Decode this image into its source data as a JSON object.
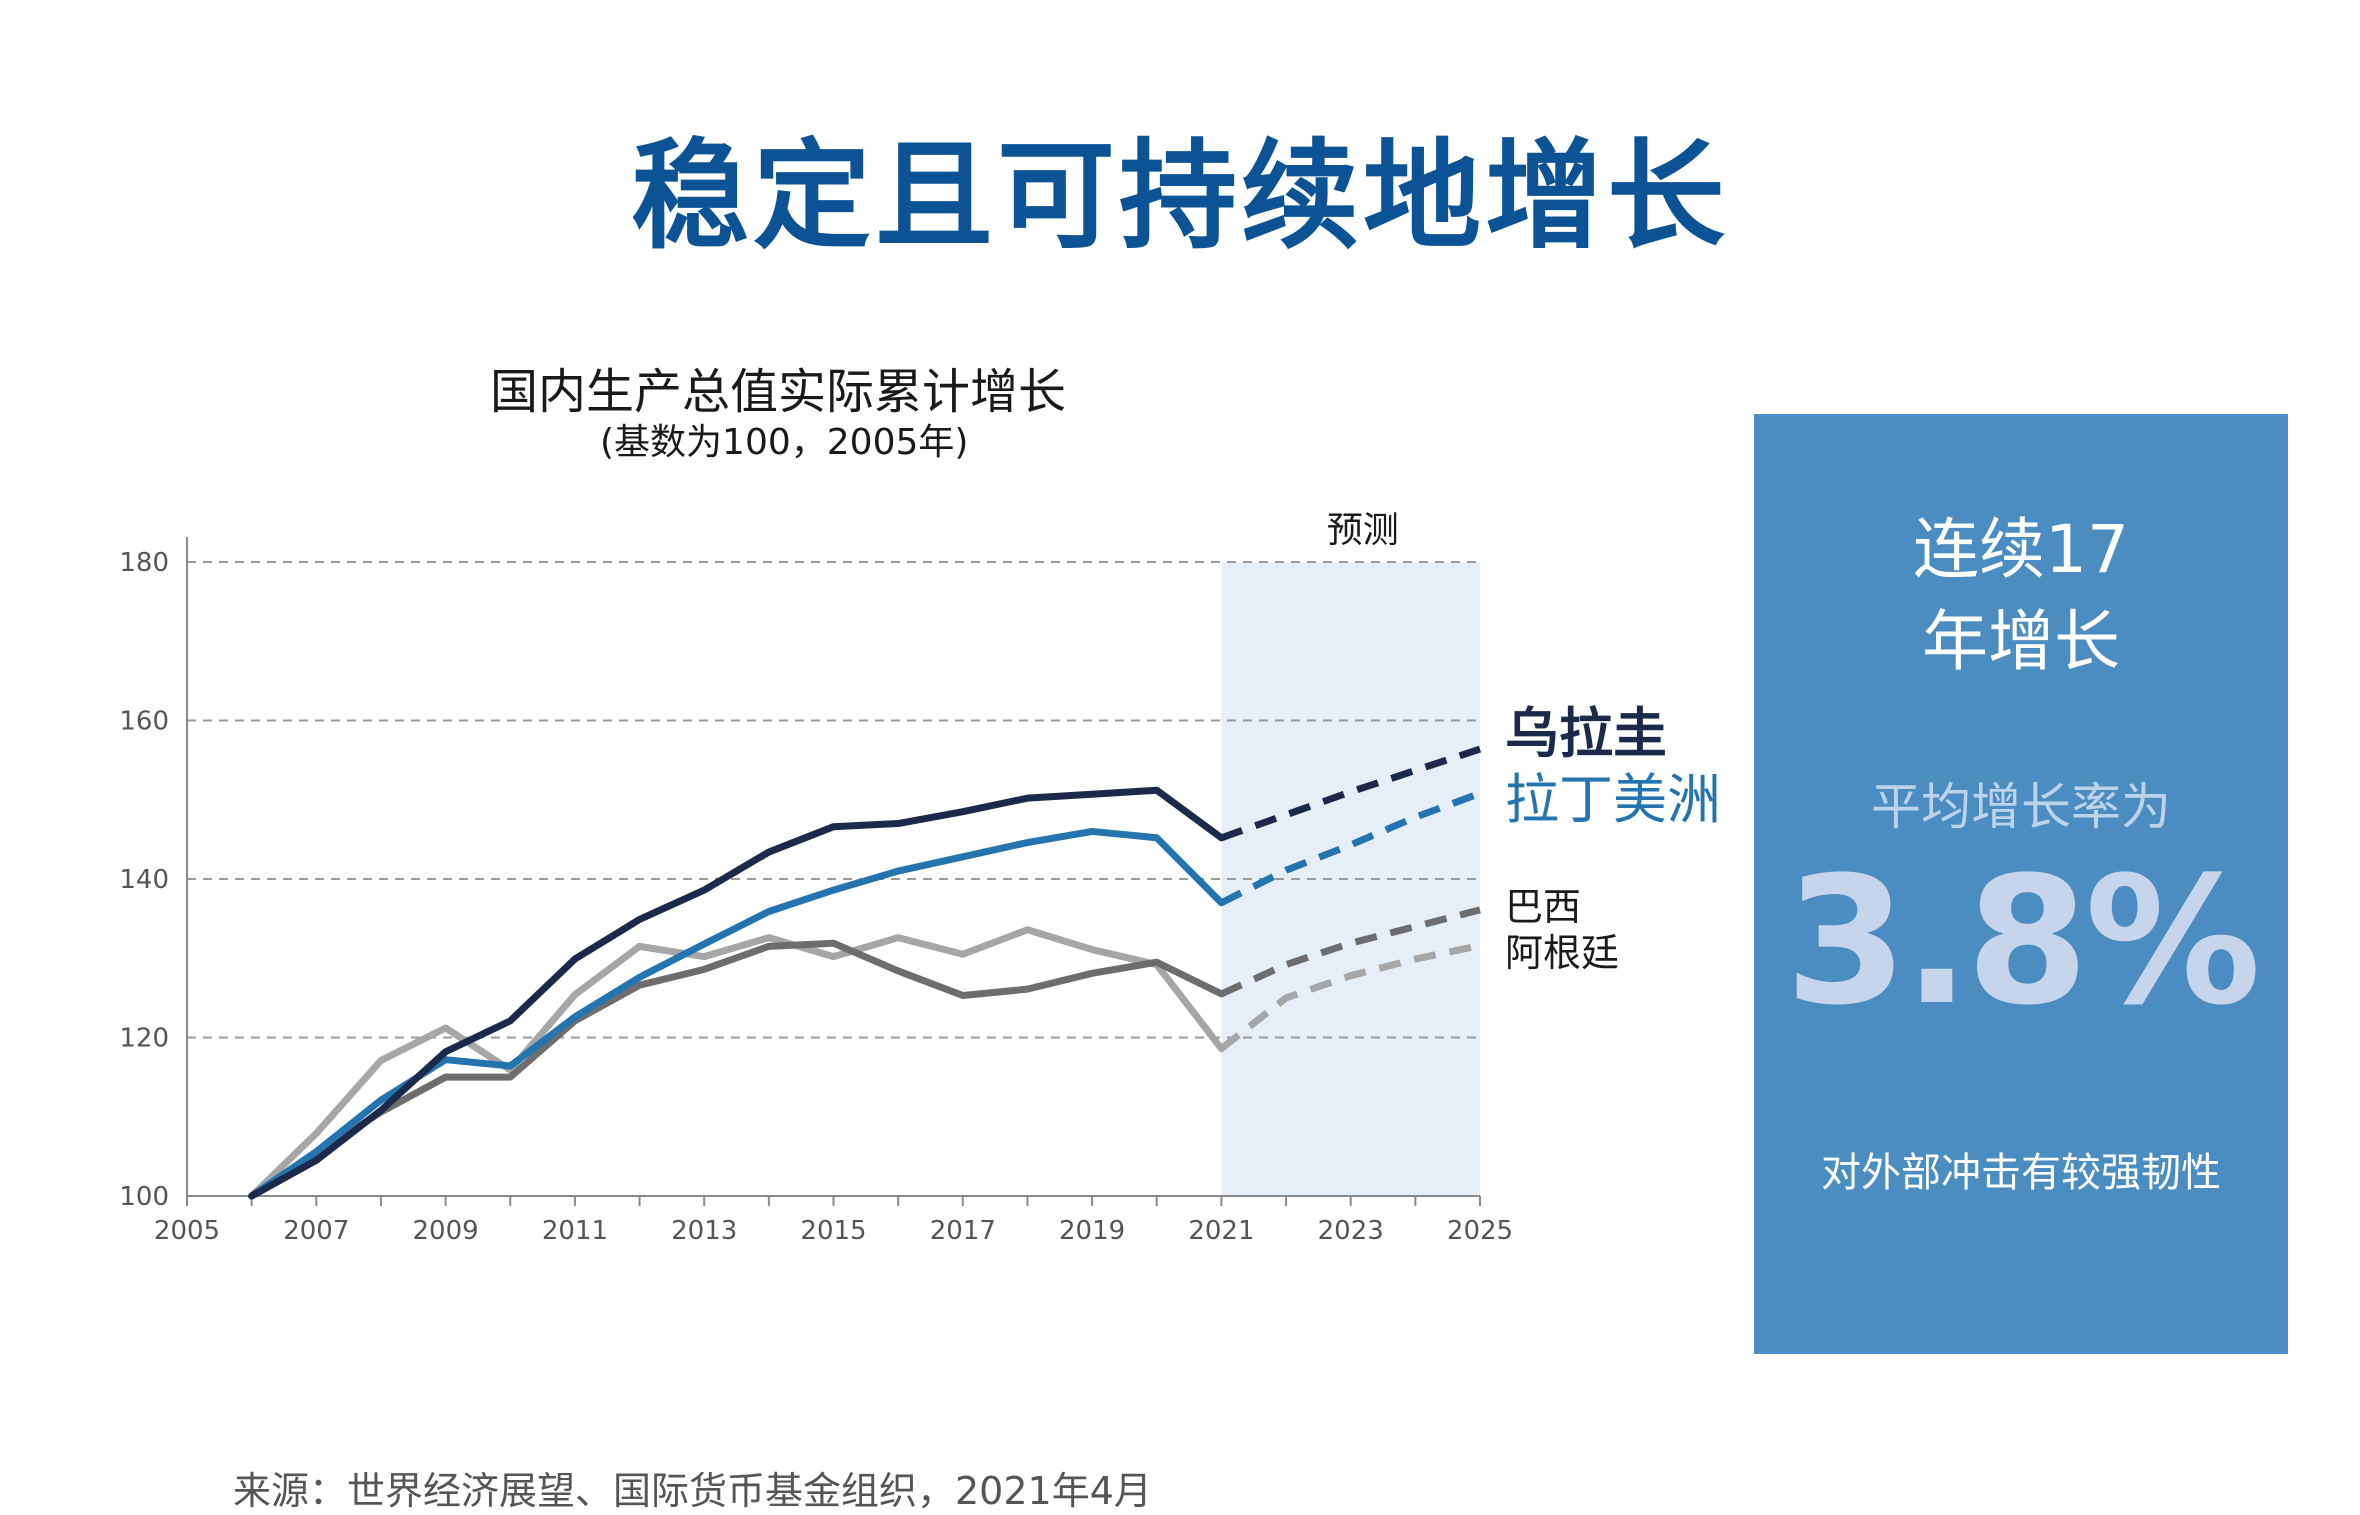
{
  "header": {
    "title": "稳定且可持续地增长"
  },
  "chart_data": {
    "type": "line",
    "title": "国内生产总值实际累计增长",
    "subtitle": "(基数为100，2005年)",
    "forecast_label": "预测",
    "forecast_range": [
      2021,
      2025
    ],
    "xlim": [
      2005,
      2025
    ],
    "ylim": [
      100,
      180
    ],
    "x_ticks": [
      2005,
      2007,
      2009,
      2011,
      2013,
      2015,
      2017,
      2019,
      2021,
      2023,
      2025
    ],
    "y_ticks": [
      100,
      120,
      140,
      160,
      180
    ],
    "grid": "horizontal dashed",
    "x": [
      2006,
      2007,
      2008,
      2009,
      2010,
      2011,
      2012,
      2013,
      2014,
      2015,
      2016,
      2017,
      2018,
      2019,
      2020,
      2021
    ],
    "forecast_x": [
      2021,
      2022,
      2023,
      2024,
      2025
    ],
    "series": [
      {
        "name": "乌拉圭",
        "color": "#1b2a4a",
        "values": [
          100,
          104.5,
          110.8,
          118.2,
          122.1,
          129.9,
          134.9,
          138.6,
          143.4,
          146.6,
          147.0,
          148.5,
          150.2,
          150.7,
          151.2,
          145.2
        ],
        "forecast": [
          145.2,
          148.1,
          151.0,
          153.7,
          156.4
        ]
      },
      {
        "name": "拉丁美洲",
        "color": "#2474b0",
        "values": [
          100,
          105.6,
          112.1,
          117.2,
          116.4,
          122.6,
          127.6,
          131.8,
          135.9,
          138.6,
          141.0,
          142.8,
          144.6,
          146.0,
          145.2,
          137.0
        ],
        "forecast": [
          137.0,
          141.1,
          144.3,
          147.8,
          150.8
        ]
      },
      {
        "name": "巴西",
        "color": "#6d6d6d",
        "values": [
          100,
          105.3,
          110.6,
          115.0,
          115.0,
          122.1,
          126.6,
          128.6,
          131.5,
          131.9,
          128.4,
          125.3,
          126.1,
          128.1,
          129.5,
          125.5
        ],
        "forecast": [
          125.5,
          129.2,
          131.9,
          134.0,
          136.1
        ]
      },
      {
        "name": "阿根廷",
        "color": "#a6a6a6",
        "values": [
          100,
          107.9,
          117.1,
          121.2,
          115.9,
          125.4,
          131.5,
          130.2,
          132.6,
          130.2,
          132.6,
          130.5,
          133.6,
          131.1,
          129.2,
          118.6
        ],
        "forecast": [
          118.6,
          125.0,
          127.8,
          129.9,
          131.6
        ]
      }
    ]
  },
  "panel": {
    "headline_line1": "连续17",
    "headline_line2": "年增长",
    "subline": "平均增长率为",
    "big_value": "3.8%",
    "note": "对外部冲击有较强韧性",
    "bg_color": "#4b8dc0"
  },
  "footer": {
    "source": "来源：世界经济展望、国际货币基金组织，2021年4月"
  }
}
